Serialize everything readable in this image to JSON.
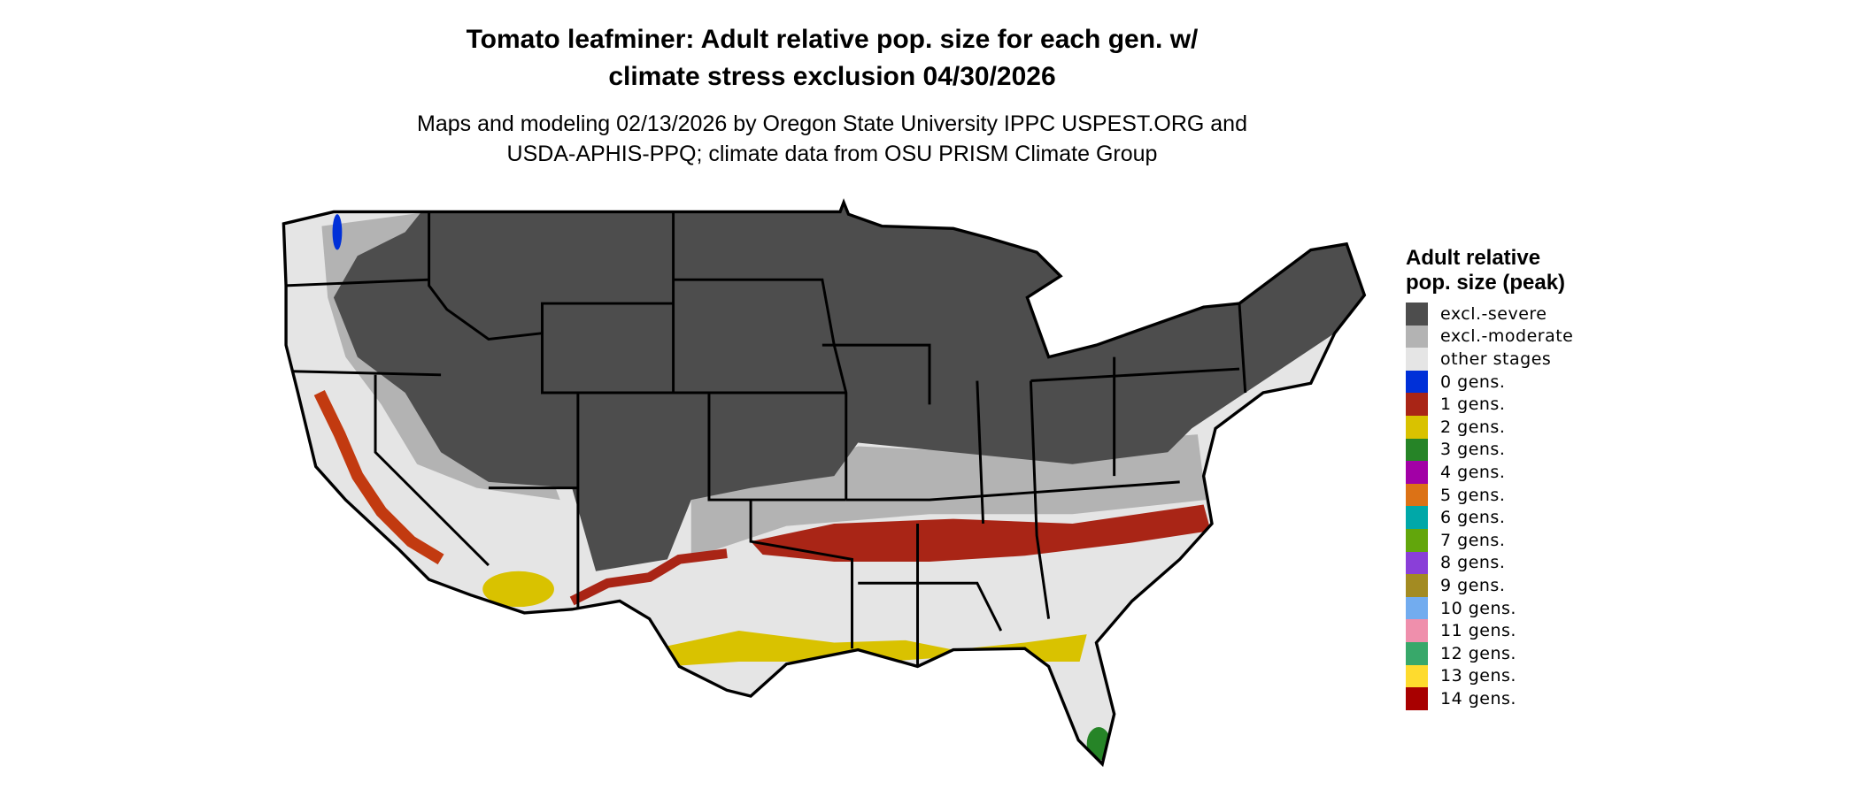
{
  "title": {
    "line1": "Tomato leafminer: Adult relative pop. size for each gen. w/",
    "line2": "climate stress exclusion 04/30/2026"
  },
  "subtitle": {
    "line1": "Maps and modeling 02/13/2026 by Oregon State University IPPC USPEST.ORG and",
    "line2": "USDA-APHIS-PPQ; climate data from OSU PRISM Climate Group"
  },
  "legend": {
    "title": "Adult relative pop. size (peak)",
    "items": [
      {
        "label": "excl.-severe",
        "color": "#4d4d4d"
      },
      {
        "label": "excl.-moderate",
        "color": "#b3b3b3"
      },
      {
        "label": "other stages",
        "color": "#e5e5e5"
      },
      {
        "label": "0 gens.",
        "color": "#0030d8"
      },
      {
        "label": "1 gens.",
        "color": "#a92516"
      },
      {
        "label": "2 gens.",
        "color": "#d9c200"
      },
      {
        "label": "3 gens.",
        "color": "#268427"
      },
      {
        "label": "4 gens.",
        "color": "#a200a6"
      },
      {
        "label": "5 gens.",
        "color": "#dc7216"
      },
      {
        "label": "6 gens.",
        "color": "#00a8a8"
      },
      {
        "label": "7 gens.",
        "color": "#62a60c"
      },
      {
        "label": "8 gens.",
        "color": "#8a3fd8"
      },
      {
        "label": "9 gens.",
        "color": "#a38b22"
      },
      {
        "label": "10 gens.",
        "color": "#72acef"
      },
      {
        "label": "11 gens.",
        "color": "#ef8fac"
      },
      {
        "label": "12 gens.",
        "color": "#38a86a"
      },
      {
        "label": "13 gens.",
        "color": "#fedb2e"
      },
      {
        "label": "14 gens.",
        "color": "#a80000"
      }
    ]
  }
}
